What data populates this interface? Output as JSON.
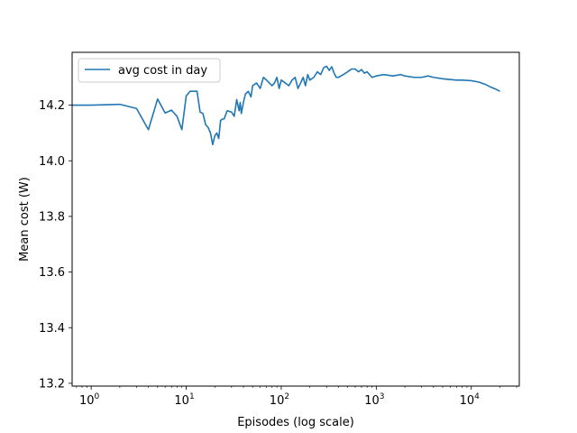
{
  "chart_data": {
    "type": "line",
    "title": "",
    "xlabel": "Episodes (log scale)",
    "ylabel": "Mean cost (W)",
    "x_scale": "log",
    "xlim": [
      0.63,
      32000
    ],
    "ylim": [
      13.19,
      14.39
    ],
    "x_ticks": [
      {
        "value": 1,
        "base": "10",
        "exp": "0"
      },
      {
        "value": 10,
        "base": "10",
        "exp": "1"
      },
      {
        "value": 100,
        "base": "10",
        "exp": "2"
      },
      {
        "value": 1000,
        "base": "10",
        "exp": "3"
      },
      {
        "value": 10000,
        "base": "10",
        "exp": "4"
      }
    ],
    "y_ticks": [
      {
        "value": 13.2,
        "label": "13.2"
      },
      {
        "value": 13.4,
        "label": "13.4"
      },
      {
        "value": 13.6,
        "label": "13.6"
      },
      {
        "value": 13.8,
        "label": "13.8"
      },
      {
        "value": 14.0,
        "label": "14.0"
      },
      {
        "value": 14.2,
        "label": "14.2"
      }
    ],
    "grid": false,
    "legend_position": "top-left",
    "series": [
      {
        "name": "avg cost in day",
        "color": "#1f77b4",
        "x": [
          0.6,
          1,
          2,
          3,
          4,
          5,
          6,
          7,
          8,
          9,
          10,
          11,
          13,
          14,
          15,
          16,
          17,
          18,
          19,
          20,
          21,
          22,
          23,
          24,
          25,
          27,
          30,
          32,
          34,
          36,
          37,
          38,
          40,
          42,
          45,
          48,
          50,
          55,
          60,
          65,
          70,
          75,
          80,
          85,
          90,
          95,
          100,
          110,
          120,
          130,
          140,
          150,
          160,
          170,
          180,
          190,
          200,
          220,
          240,
          260,
          280,
          300,
          320,
          340,
          360,
          380,
          400,
          450,
          500,
          550,
          600,
          650,
          700,
          750,
          800,
          900,
          1000,
          1200,
          1500,
          1800,
          2000,
          2500,
          3000,
          3500,
          4000,
          5000,
          6000,
          7000,
          8000,
          10000,
          12000,
          14000,
          16000,
          18000,
          20000
        ],
        "values": [
          14.2,
          14.2,
          14.203,
          14.188,
          14.112,
          14.222,
          14.172,
          14.182,
          14.16,
          14.112,
          14.233,
          14.25,
          14.25,
          14.175,
          14.17,
          14.13,
          14.12,
          14.1,
          14.058,
          14.09,
          14.1,
          14.08,
          14.145,
          14.15,
          14.15,
          14.18,
          14.175,
          14.16,
          14.22,
          14.18,
          14.21,
          14.17,
          14.21,
          14.24,
          14.25,
          14.23,
          14.27,
          14.28,
          14.26,
          14.3,
          14.29,
          14.28,
          14.27,
          14.28,
          14.3,
          14.26,
          14.29,
          14.28,
          14.27,
          14.29,
          14.3,
          14.26,
          14.28,
          14.3,
          14.27,
          14.31,
          14.29,
          14.3,
          14.32,
          14.31,
          14.335,
          14.34,
          14.325,
          14.338,
          14.315,
          14.3,
          14.3,
          14.31,
          14.32,
          14.33,
          14.33,
          14.32,
          14.328,
          14.315,
          14.32,
          14.3,
          14.305,
          14.31,
          14.305,
          14.31,
          14.305,
          14.3,
          14.3,
          14.305,
          14.3,
          14.295,
          14.292,
          14.29,
          14.29,
          14.288,
          14.283,
          14.275,
          14.265,
          14.258,
          14.25
        ]
      }
    ]
  }
}
